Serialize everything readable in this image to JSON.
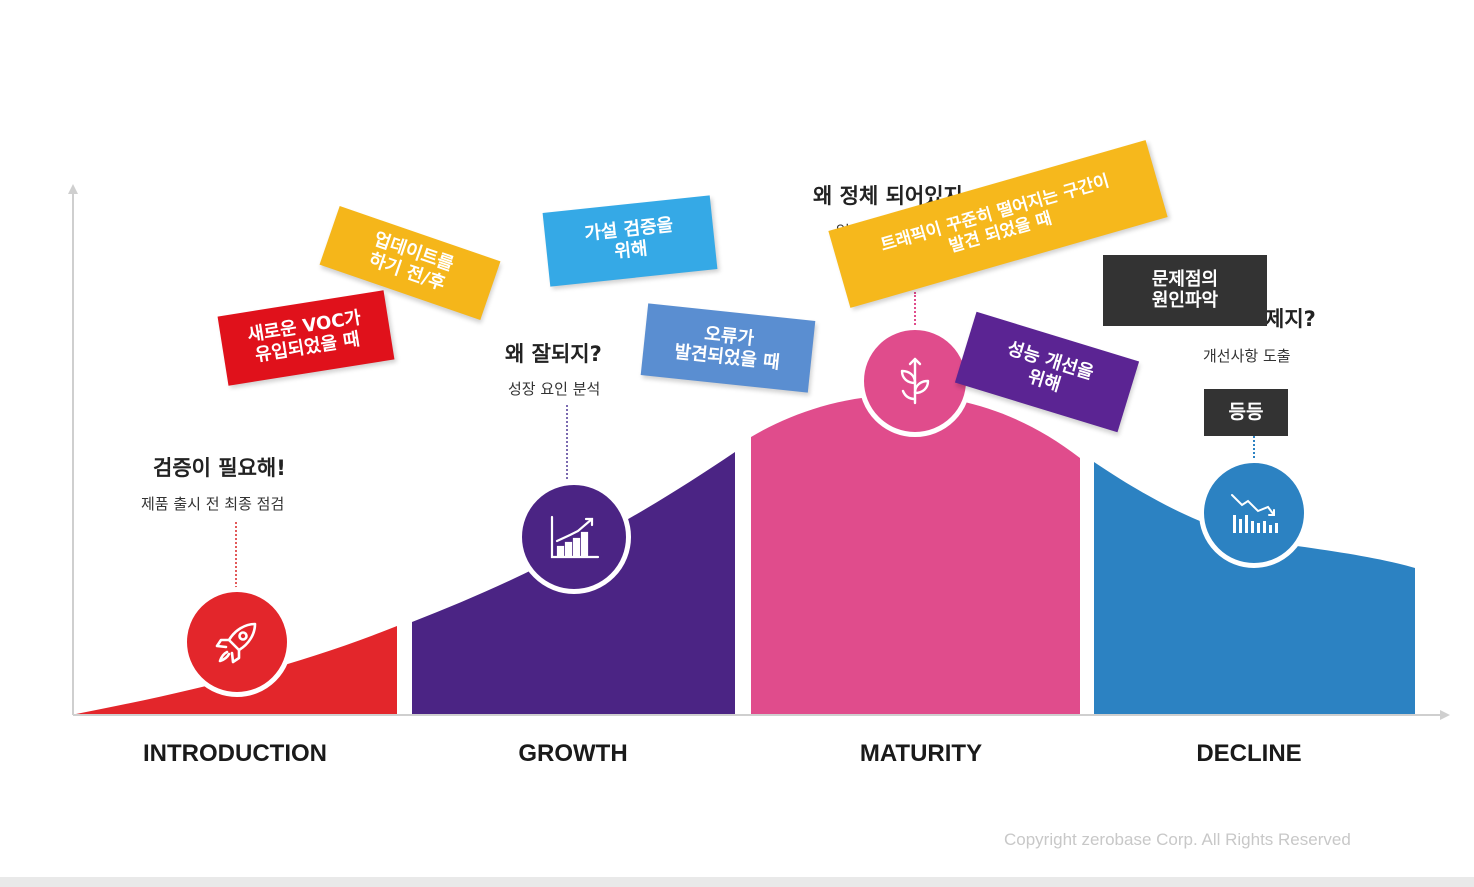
{
  "stages": [
    {
      "label": "INTRODUCTION",
      "color": "#e3262b"
    },
    {
      "label": "GROWTH",
      "color": "#4b2484"
    },
    {
      "label": "MATURITY",
      "color": "#e04c8c"
    },
    {
      "label": "DECLINE",
      "color": "#2c82c2"
    }
  ],
  "introduction": {
    "heading": "검증이 필요해!",
    "subtitle": "제품 출시 전 최종 점검",
    "icon": "rocket-icon"
  },
  "growth": {
    "heading": "왜 잘되지?",
    "subtitle": "성장 요인 분석",
    "icon": "growth-chart-icon"
  },
  "maturity": {
    "heading": "왜 정체 되어있지",
    "subtitle_partial": "업데이",
    "icon": "sprout-icon"
  },
  "decline": {
    "heading_partial": "제지?",
    "subtitle": "개선사항 도출",
    "etc_tag": "등등",
    "icon": "declining-chart-icon"
  },
  "tags": {
    "new_voc": {
      "text": "새로운 VOC가\n유입되었을 때",
      "color": "#e0111b"
    },
    "update": {
      "text": "업데이트를\n하기 전/후",
      "color": "#f5b61a"
    },
    "hypothesis": {
      "text": "가설 검증을\n위해",
      "color": "#35a9e6"
    },
    "error": {
      "text": "오류가\n발견되었을 때",
      "color": "#5a8ed1"
    },
    "traffic": {
      "text": "트래픽이 꾸준히 떨어지는 구간이\n발견 되었을 때",
      "color": "#f6b81c"
    },
    "performance": {
      "text": "성능 개선을\n위해",
      "color": "#5b2493"
    },
    "root_cause": {
      "text": "문제점의\n원인파악",
      "color": "#333333"
    }
  },
  "copyright": "Copyright zerobase Corp. All Rights Reserved"
}
